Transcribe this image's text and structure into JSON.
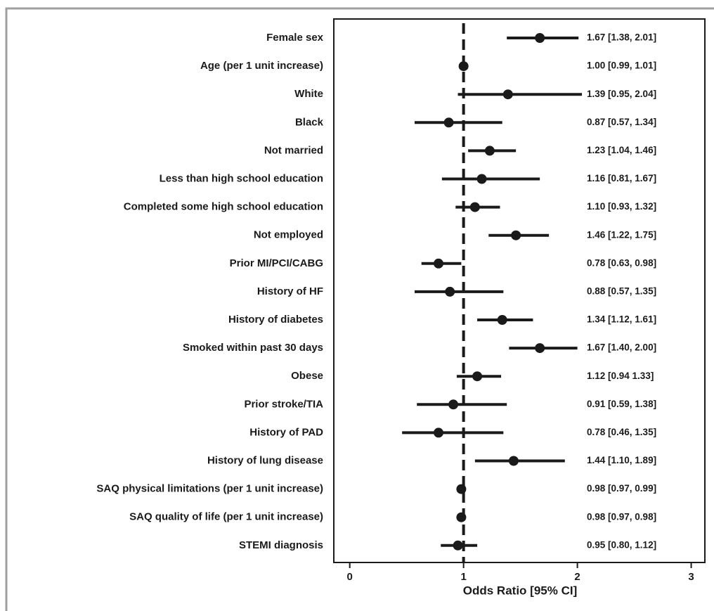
{
  "chart_data": {
    "type": "forest",
    "xlabel": "Odds Ratio [95% CI]",
    "categories": [
      "Female sex",
      "Age (per 1 unit increase)",
      "White",
      "Black",
      "Not married",
      "Less than high school education",
      "Completed some high school education",
      "Not employed",
      "Prior MI/PCI/CABG",
      "History of HF",
      "History of diabetes",
      "Smoked within past 30 days",
      "Obese",
      "Prior stroke/TIA",
      "History of PAD",
      "History of lung disease",
      "SAQ physical limitations (per 1 unit increase)",
      "SAQ quality of life (per 1 unit increase)",
      "STEMI diagnosis"
    ],
    "values": [
      1.67,
      1.0,
      1.39,
      0.87,
      1.23,
      1.16,
      1.1,
      1.46,
      0.78,
      0.88,
      1.34,
      1.67,
      1.12,
      0.91,
      0.78,
      1.44,
      0.98,
      0.98,
      0.95
    ],
    "lower": [
      1.38,
      0.99,
      0.95,
      0.57,
      1.04,
      0.81,
      0.93,
      1.22,
      0.63,
      0.57,
      1.12,
      1.4,
      0.94,
      0.59,
      0.46,
      1.1,
      0.97,
      0.97,
      0.8
    ],
    "upper": [
      2.01,
      1.01,
      2.04,
      1.34,
      1.46,
      1.67,
      1.32,
      1.75,
      0.98,
      1.35,
      1.61,
      2.0,
      1.33,
      1.38,
      1.35,
      1.89,
      0.99,
      0.98,
      1.12
    ],
    "value_labels": [
      "1.67 [1.38, 2.01]",
      "1.00 [0.99, 1.01]",
      "1.39 [0.95, 2.04]",
      "0.87 [0.57, 1.34]",
      "1.23 [1.04, 1.46]",
      "1.16 [0.81, 1.67]",
      "1.10 [0.93, 1.32]",
      "1.46 [1.22, 1.75]",
      "0.78 [0.63, 0.98]",
      "0.88 [0.57, 1.35]",
      "1.34 [1.12, 1.61]",
      "1.67 [1.40, 2.00]",
      "1.12 [0.94  1.33]",
      "0.91 [0.59, 1.38]",
      "0.78 [0.46, 1.35]",
      "1.44 [1.10, 1.89]",
      "0.98 [0.97, 0.99]",
      "0.98 [0.97, 0.98]",
      "0.95 [0.80, 1.12]"
    ],
    "reference_line": 1,
    "color": "#1a1a1a",
    "xlim": [
      -0.14,
      3.12
    ],
    "xticks": [
      0,
      1,
      2,
      3
    ]
  }
}
